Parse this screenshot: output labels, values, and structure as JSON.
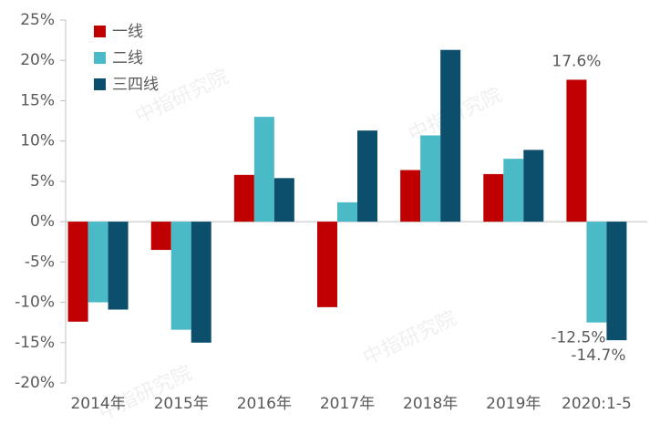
{
  "chart_data": {
    "type": "bar",
    "categories": [
      "2014年",
      "2015年",
      "2016年",
      "2017年",
      "2018年",
      "2019年",
      "2020:1-5"
    ],
    "series": [
      {
        "name": "一线",
        "color": "#c00000",
        "values": [
          -12.4,
          -3.5,
          5.8,
          -10.6,
          6.4,
          5.9,
          17.6
        ],
        "value_labels": [
          null,
          null,
          null,
          null,
          null,
          null,
          "17.6%"
        ]
      },
      {
        "name": "二线",
        "color": "#4bbac7",
        "values": [
          -10.0,
          -13.4,
          13.0,
          2.4,
          10.7,
          7.8,
          -12.5
        ],
        "value_labels": [
          null,
          null,
          null,
          null,
          null,
          null,
          "-12.5%"
        ]
      },
      {
        "name": "三四线",
        "color": "#0b4f6c",
        "values": [
          -10.9,
          -15.0,
          5.4,
          11.3,
          21.3,
          8.9,
          -14.7
        ],
        "value_labels": [
          null,
          null,
          null,
          null,
          null,
          null,
          "-14.7%"
        ]
      }
    ],
    "ylim": [
      -20,
      25
    ],
    "yticks": [
      {
        "value": -20,
        "label": "-20%"
      },
      {
        "value": -15,
        "label": "-15%"
      },
      {
        "value": -10,
        "label": "-10%"
      },
      {
        "value": -5,
        "label": "-5%"
      },
      {
        "value": 0,
        "label": "0%"
      },
      {
        "value": 5,
        "label": "5%"
      },
      {
        "value": 10,
        "label": "10%"
      },
      {
        "value": 15,
        "label": "15%"
      },
      {
        "value": 20,
        "label": "20%"
      },
      {
        "value": 25,
        "label": "25%"
      }
    ],
    "legend": "top-left",
    "watermark": "中指研究院"
  }
}
